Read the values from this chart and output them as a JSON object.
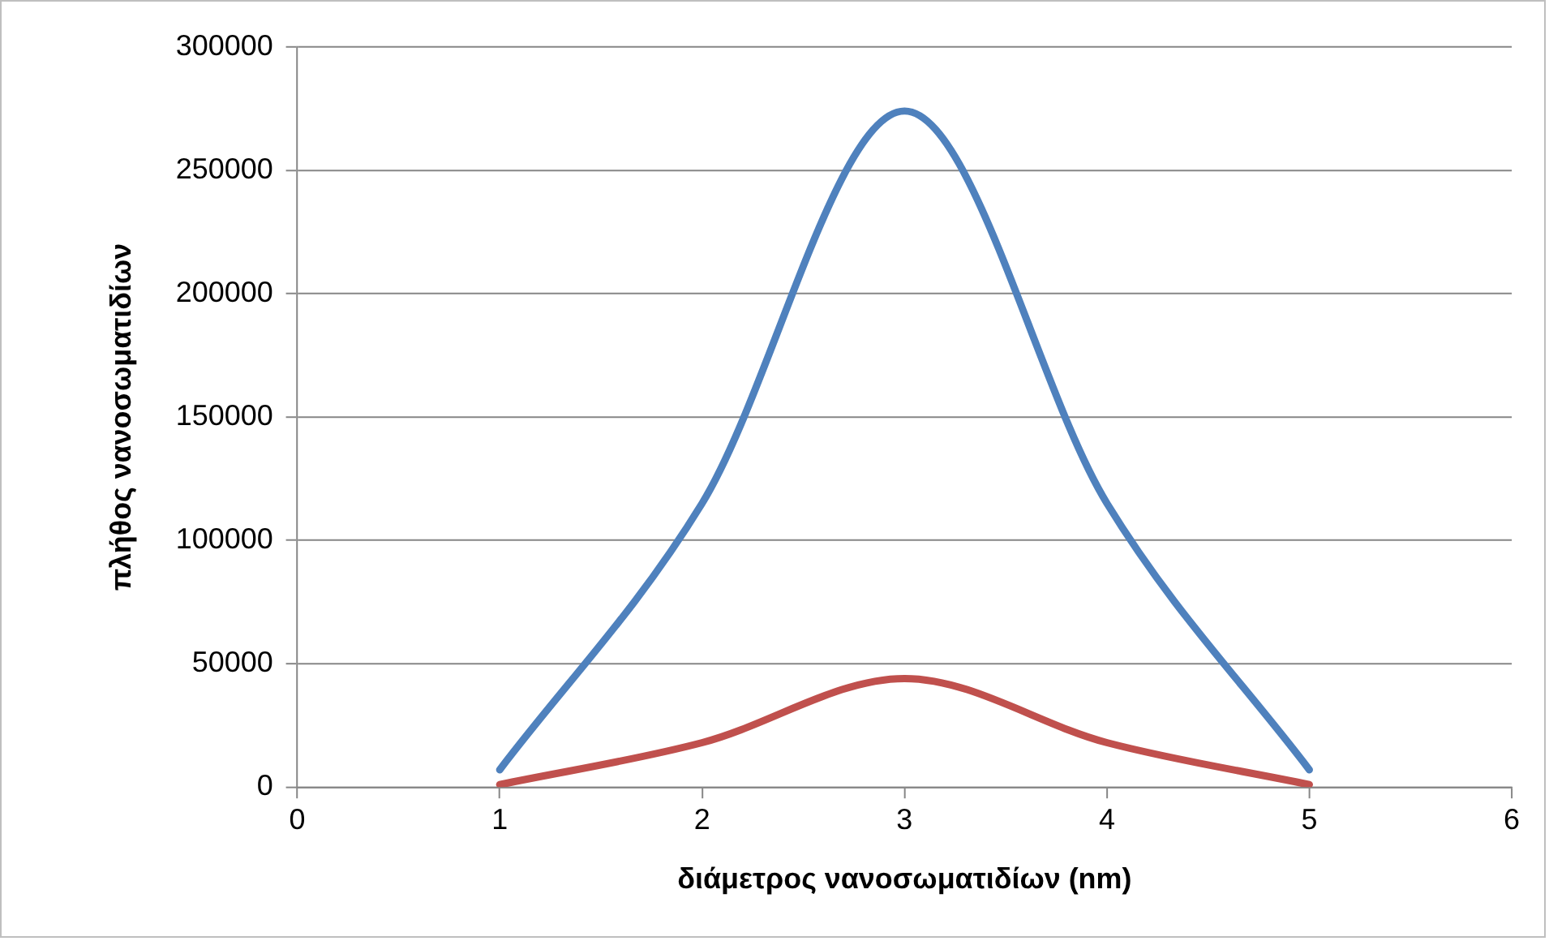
{
  "chart_data": {
    "type": "line",
    "xlabel": "διάμετρος νανοσωματιδίων (nm)",
    "ylabel": "πλήθος νανοσωματιδίων",
    "x": [
      1,
      2,
      3,
      4,
      5
    ],
    "series": [
      {
        "color": "#4f81bd",
        "values": [
          7000,
          115000,
          274000,
          115000,
          7000
        ]
      },
      {
        "color": "#c0504d",
        "values": [
          1000,
          18000,
          44000,
          18000,
          1000
        ]
      }
    ],
    "xlim": [
      0,
      6
    ],
    "xticks": [
      0,
      1,
      2,
      3,
      4,
      5,
      6
    ],
    "ylim": [
      0,
      300000
    ],
    "yticks": [
      0,
      50000,
      100000,
      150000,
      200000,
      250000,
      300000
    ],
    "grid": "y",
    "legend": false,
    "marker": "none",
    "line_style": "solid"
  }
}
